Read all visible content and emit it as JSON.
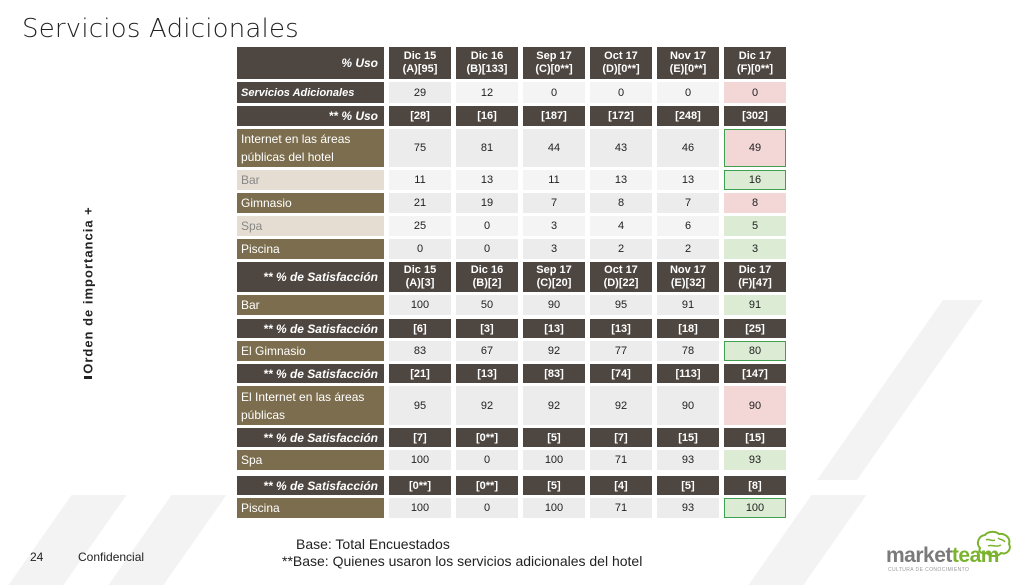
{
  "title": "Servicios Adicionales",
  "side_label": "Orden de importancia +",
  "table": {
    "header": {
      "label": "% Uso",
      "cols": [
        {
          "l1": "Dic 15",
          "l2": "(A)[95]"
        },
        {
          "l1": "Dic 16",
          "l2": "(B)[133]"
        },
        {
          "l1": "Sep 17",
          "l2": "(C)[0**]"
        },
        {
          "l1": "Oct 17",
          "l2": "(D)[0**]"
        },
        {
          "l1": "Nov 17",
          "l2": "(E)[0**]"
        },
        {
          "l1": "Dic 17",
          "l2": "(F)[0**]"
        }
      ]
    },
    "servicios": {
      "label": "Servicios Adicionales",
      "values": [
        "29",
        "12",
        "0",
        "0",
        "0",
        "0"
      ]
    },
    "uso_base": {
      "label": "** % Uso",
      "values": [
        "[28]",
        "[16]",
        "[187]",
        "[172]",
        "[248]",
        "[302]"
      ]
    },
    "uso_rows": [
      {
        "label": "Internet en las áreas públicas del hotel",
        "values": [
          "75",
          "81",
          "44",
          "43",
          "46",
          "49"
        ]
      },
      {
        "label": "Bar",
        "values": [
          "11",
          "13",
          "11",
          "13",
          "13",
          "16"
        ]
      },
      {
        "label": "Gimnasio",
        "values": [
          "21",
          "19",
          "7",
          "8",
          "7",
          "8"
        ]
      },
      {
        "label": "Spa",
        "values": [
          "25",
          "0",
          "3",
          "4",
          "6",
          "5"
        ]
      },
      {
        "label": "Piscina",
        "values": [
          "0",
          "0",
          "3",
          "2",
          "2",
          "3"
        ]
      }
    ],
    "sat_header": {
      "label": "** % de Satisfacción",
      "cols": [
        {
          "l1": "Dic 15",
          "l2": "(A)[3]"
        },
        {
          "l1": "Dic 16",
          "l2": "(B)[2]"
        },
        {
          "l1": "Sep 17",
          "l2": "(C)[20]"
        },
        {
          "l1": "Oct 17",
          "l2": "(D)[22]"
        },
        {
          "l1": "Nov 17",
          "l2": "(E)[32]"
        },
        {
          "l1": "Dic 17",
          "l2": "(F)[47]"
        }
      ]
    },
    "sat_bar": {
      "label": "Bar",
      "values": [
        "100",
        "50",
        "90",
        "95",
        "91",
        "91"
      ]
    },
    "sat_gym_base": {
      "label": "** % de Satisfacción",
      "values": [
        "[6]",
        "[3]",
        "[13]",
        "[13]",
        "[18]",
        "[25]"
      ]
    },
    "sat_gym": {
      "label": "El Gimnasio",
      "values": [
        "83",
        "67",
        "92",
        "77",
        "78",
        "80"
      ]
    },
    "sat_internet_base": {
      "label": "** % de Satisfacción",
      "values": [
        "[21]",
        "[13]",
        "[83]",
        "[74]",
        "[113]",
        "[147]"
      ]
    },
    "sat_internet": {
      "label": "El Internet en las áreas públicas",
      "values": [
        "95",
        "92",
        "92",
        "92",
        "90",
        "90"
      ]
    },
    "sat_spa_base": {
      "label": "** % de Satisfacción",
      "values": [
        "[7]",
        "[0**]",
        "[5]",
        "[7]",
        "[15]",
        "[15]"
      ]
    },
    "sat_spa": {
      "label": "Spa",
      "values": [
        "100",
        "0",
        "100",
        "71",
        "93",
        "93"
      ]
    },
    "sat_piscina_base": {
      "label": "** % de Satisfacción",
      "values": [
        "[0**]",
        "[0**]",
        "[5]",
        "[4]",
        "[5]",
        "[8]"
      ]
    },
    "sat_piscina": {
      "label": "Piscina",
      "values": [
        "100",
        "0",
        "100",
        "71",
        "93",
        "100"
      ]
    }
  },
  "footer": {
    "page_number": "24",
    "confidential": "Confidencial",
    "base_line1": "Base: Total Encuestados",
    "base_line2": "**Base: Quienes usaron los servicios adicionales del hotel"
  },
  "logo": {
    "part1": "market",
    "part2": "team",
    "tagline": "CULTURA DE CONOCIMIENTO"
  },
  "colors": {
    "header_bg": "#4e4640",
    "label_dark": "#7b6d4d",
    "label_light": "#e5ddd2",
    "pink": "#f3d6d6",
    "green": "#dcebd4",
    "outline_green": "#3fa052",
    "logo_grey": "#7a7a7a",
    "logo_green": "#7bb32e"
  }
}
